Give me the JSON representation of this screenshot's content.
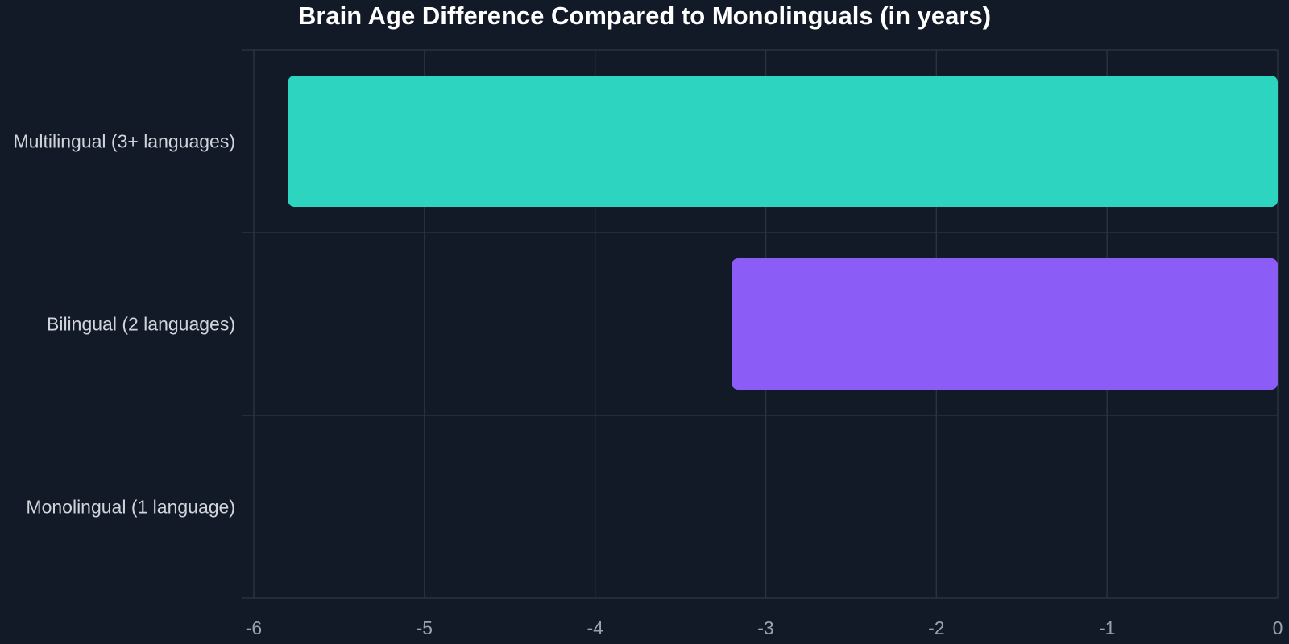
{
  "chart_data": {
    "type": "bar",
    "orientation": "horizontal",
    "title": "Brain Age Difference Compared to Monolinguals (in years)",
    "xlabel": "",
    "ylabel": "",
    "categories": [
      "Multilingual (3+ languages)",
      "Bilingual (2 languages)",
      "Monolingual (1 language)"
    ],
    "values": [
      -5.8,
      -3.2,
      0
    ],
    "xlim": [
      -6,
      0
    ],
    "xticks": [
      "-6",
      "-5",
      "-4",
      "-3",
      "-2",
      "-1",
      "0"
    ],
    "colors": [
      "#2dd4bf",
      "#8b5cf6",
      "#121927"
    ],
    "background": "#121927",
    "grid": true,
    "legend": "none"
  }
}
